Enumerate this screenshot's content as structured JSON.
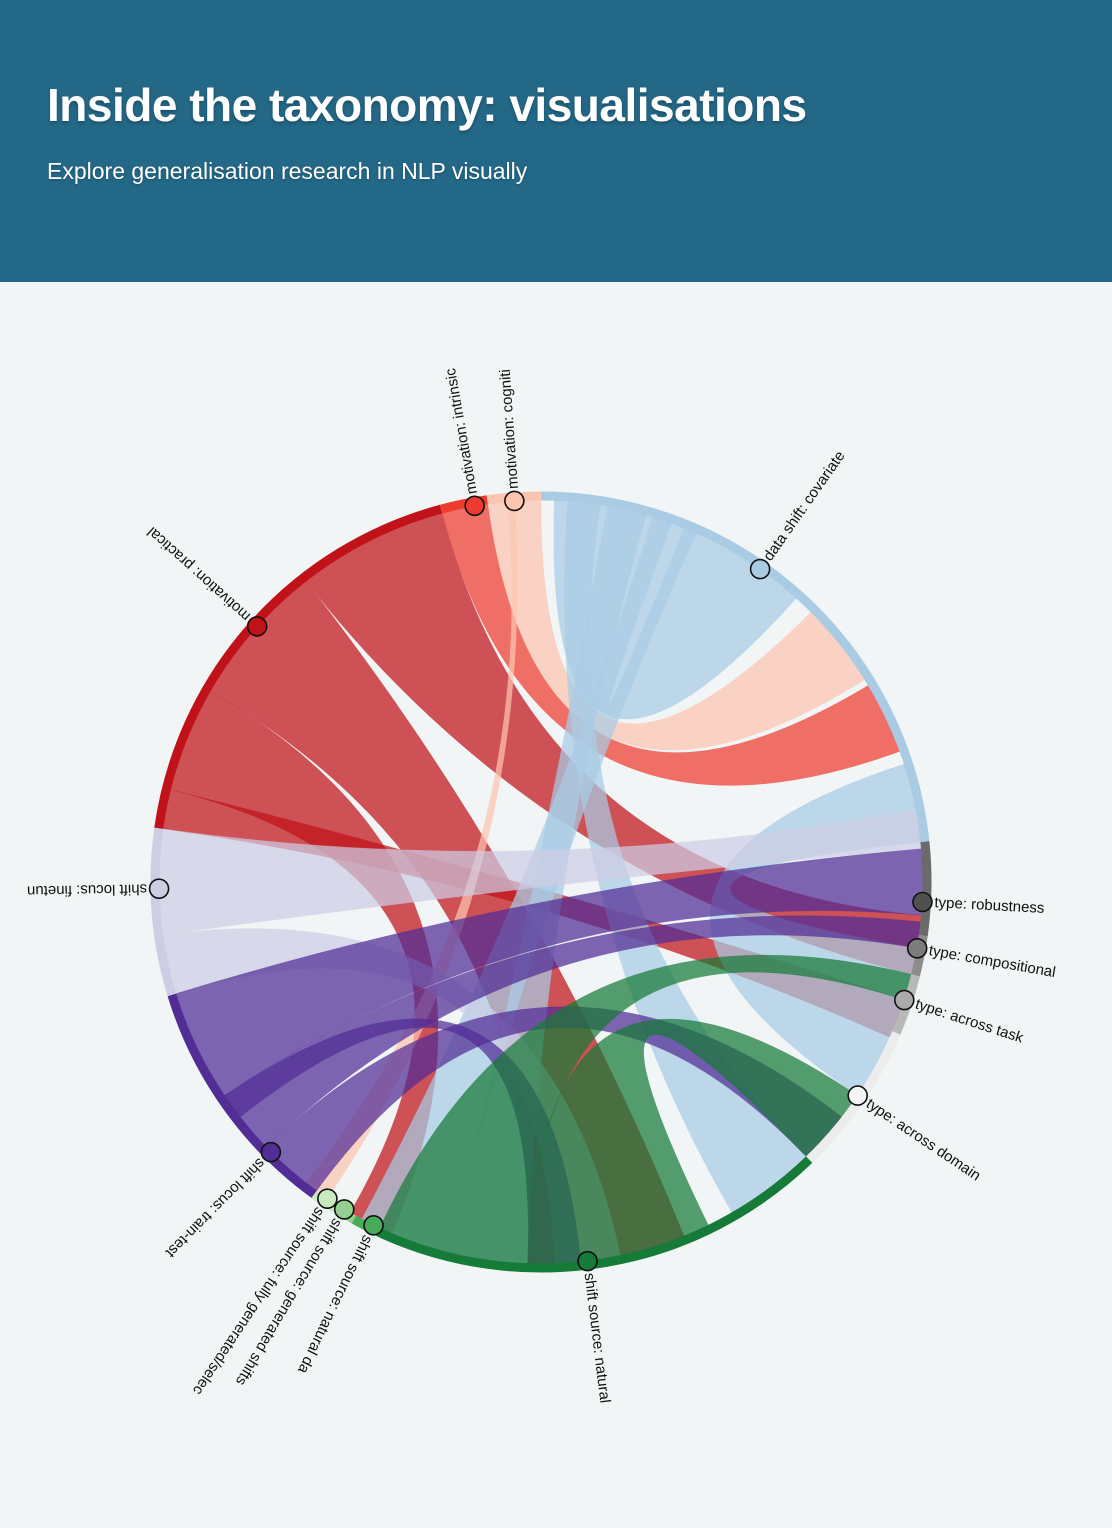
{
  "header": {
    "title": "Inside the taxonomy: visualisations",
    "subtitle": "Explore generalisation research in NLP visually"
  },
  "nodes": [
    {
      "label": "data shift: covariate",
      "angle": 35,
      "color": "#a9cce4",
      "rim": "#a9cce4",
      "start": 0,
      "end": 84
    },
    {
      "label": "type: robustness",
      "angle": 93,
      "color": "#505050",
      "rim": "#6a6a6a",
      "start": 84,
      "end": 98
    },
    {
      "label": "type: compositional",
      "angle": 100,
      "color": "#7c7c7c",
      "rim": "#8c8c8c",
      "start": 98,
      "end": 104
    },
    {
      "label": "type: across task",
      "angle": 108,
      "color": "#aaaaaa",
      "rim": "#b8b8b8",
      "start": 104,
      "end": 113
    },
    {
      "label": "type: across domain",
      "angle": 124,
      "color": "#f4f4f4",
      "rim": "#ececec",
      "start": 113,
      "end": 136
    },
    {
      "label": "shift source: natural",
      "angle": 173,
      "color": "#167a38",
      "rim": "#167a38",
      "start": 136,
      "end": 205
    },
    {
      "label": "shift source: natural da",
      "angle": 206,
      "color": "#47ac58",
      "rim": "#47ac58",
      "start": 205,
      "end": 209
    },
    {
      "label": "shift source: generated shifts",
      "angle": 211,
      "color": "#91d08f",
      "rim": "#91d08f",
      "start": 209,
      "end": 212
    },
    {
      "label": "shift source: fully generated/selec",
      "angle": 214,
      "color": "#c9eac0",
      "rim": "#c9eac0",
      "start": 212,
      "end": 216
    },
    {
      "label": "shift locus: train-test",
      "angle": 225,
      "color": "#512d95",
      "rim": "#512d95",
      "start": 216,
      "end": 253
    },
    {
      "label": "shift locus: finetun",
      "angle": 269,
      "color": "#cdcde4",
      "rim": "#cdcde4",
      "start": 253,
      "end": 278
    },
    {
      "label": "motivation: practical",
      "angle": 312,
      "color": "#c01218",
      "rim": "#c01218",
      "start": 278,
      "end": 345
    },
    {
      "label": "motivation: intrinsic",
      "angle": 350,
      "color": "#ee3b2f",
      "rim": "#ee3b2f",
      "start": 345,
      "end": 352
    },
    {
      "label": "motivation: cogniti",
      "angle": 356,
      "color": "#fcc5b0",
      "rim": "#fcc5b0",
      "start": 352,
      "end": 360
    }
  ],
  "chords": [
    {
      "from": "motivation: practical",
      "a": [
        322,
        345
      ],
      "b": [
        95,
        104
      ],
      "color": "#c01218"
    },
    {
      "from": "motivation: practical",
      "a": [
        300,
        322
      ],
      "b": [
        158,
        182
      ],
      "color": "#c01218"
    },
    {
      "from": "motivation: practical",
      "a": [
        284,
        300
      ],
      "b": [
        203,
        210
      ],
      "color": "#c01218"
    },
    {
      "from": "motivation: practical",
      "a": [
        278,
        284
      ],
      "b": [
        108,
        114
      ],
      "color": "#c01218"
    },
    {
      "from": "motivation: intrinsic",
      "a": [
        345,
        352
      ],
      "b": [
        59,
        70
      ],
      "color": "#ee3b2f"
    },
    {
      "from": "motivation: cogniti",
      "a": [
        352,
        360
      ],
      "b": [
        45,
        58
      ],
      "color": "#fcc5b0"
    },
    {
      "from": "motivation: cogniti",
      "a": [
        355,
        356
      ],
      "b": [
        214,
        218
      ],
      "color": "#fcc5b0"
    },
    {
      "from": "data shift: covariate",
      "a": [
        2,
        20
      ],
      "b": [
        22,
        42
      ],
      "color": "#a9cce4"
    },
    {
      "from": "data shift: covariate",
      "a": [
        72,
        84
      ],
      "b": [
        100,
        124
      ],
      "color": "#a9cce4"
    },
    {
      "from": "data shift: covariate",
      "a": [
        10,
        16
      ],
      "b": [
        182,
        194
      ],
      "color": "#a9cce4"
    },
    {
      "from": "data shift: covariate",
      "a": [
        17,
        24
      ],
      "b": [
        194,
        208
      ],
      "color": "#a9cce4"
    },
    {
      "from": "data shift: covariate",
      "a": [
        4,
        9
      ],
      "b": [
        136,
        150
      ],
      "color": "#a9cce4"
    },
    {
      "from": "shift locus: finetun",
      "a": [
        262,
        278
      ],
      "b": [
        79,
        85
      ],
      "color": "#cdcde4"
    },
    {
      "from": "shift locus: finetun",
      "a": [
        253,
        262
      ],
      "b": [
        168,
        178
      ],
      "color": "#cdcde4"
    },
    {
      "from": "shift locus: train-test",
      "a": [
        236,
        253
      ],
      "b": [
        85,
        95
      ],
      "color": "#512d95"
    },
    {
      "from": "shift locus: train-test",
      "a": [
        226,
        236
      ],
      "b": [
        96,
        100
      ],
      "color": "#512d95"
    },
    {
      "from": "shift locus: train-test",
      "a": [
        216,
        226
      ],
      "b": [
        128,
        136
      ],
      "color": "#512d95"
    },
    {
      "from": "shift locus: train-test",
      "a": [
        232,
        236
      ],
      "b": [
        174,
        182
      ],
      "color": "#512d95"
    },
    {
      "from": "shift source: natural",
      "a": [
        182,
        205
      ],
      "b": [
        104,
        108
      ],
      "color": "#167a38"
    },
    {
      "from": "shift source: natural",
      "a": [
        154,
        182
      ],
      "b": [
        124,
        136
      ],
      "color": "#167a38"
    }
  ]
}
